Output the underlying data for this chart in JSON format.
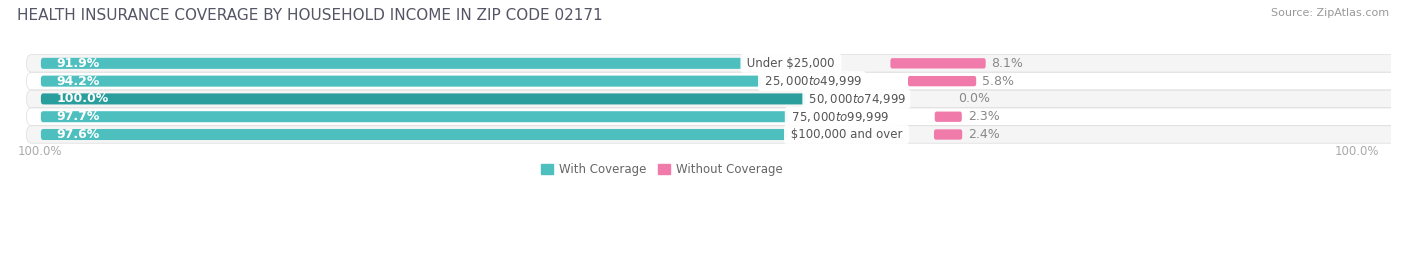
{
  "title": "HEALTH INSURANCE COVERAGE BY HOUSEHOLD INCOME IN ZIP CODE 02171",
  "source": "Source: ZipAtlas.com",
  "categories": [
    "Under $25,000",
    "$25,000 to $49,999",
    "$50,000 to $74,999",
    "$75,000 to $99,999",
    "$100,000 and over"
  ],
  "with_coverage": [
    91.9,
    94.2,
    100.0,
    97.7,
    97.6
  ],
  "without_coverage": [
    8.1,
    5.8,
    0.0,
    2.3,
    2.4
  ],
  "color_with": "#4dbfbf",
  "color_without": "#f07aaa",
  "color_with_100": "#2a9d9d",
  "bar_height": 0.62,
  "row_bg_light": "#f5f5f5",
  "row_bg_white": "#ffffff",
  "axis_label_left": "100.0%",
  "axis_label_right": "100.0%",
  "legend_with": "With Coverage",
  "legend_without": "Without Coverage",
  "title_fontsize": 11,
  "label_fontsize": 9,
  "pct_fontsize": 9,
  "tick_fontsize": 8.5,
  "source_fontsize": 8
}
